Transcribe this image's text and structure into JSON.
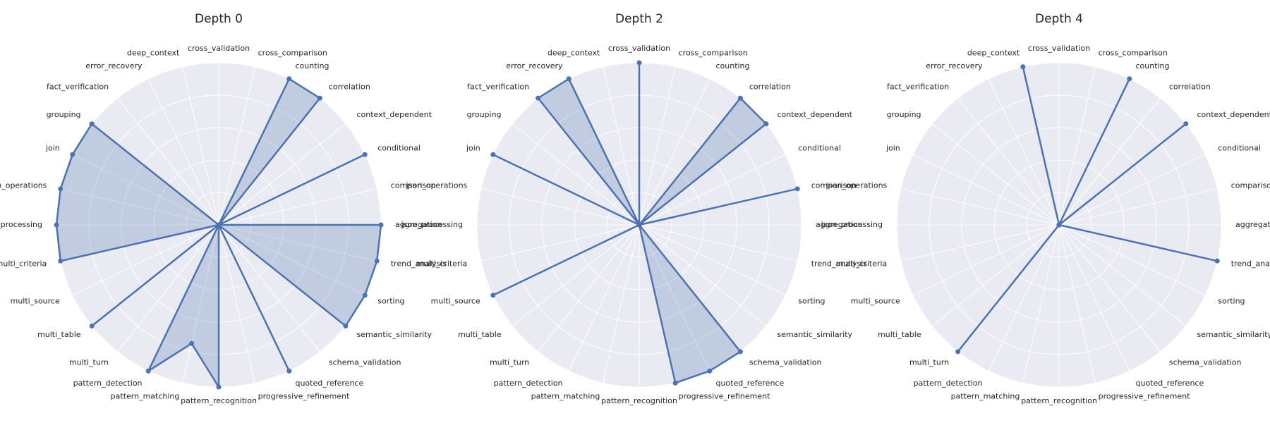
{
  "chart_data": {
    "type": "radar",
    "categories": [
      "aggregation",
      "comparison",
      "conditional",
      "context_dependent",
      "correlation",
      "counting",
      "cross_comparison",
      "cross_validation",
      "deep_context",
      "error_recovery",
      "fact_verification",
      "grouping",
      "join",
      "json_operations",
      "json_processing",
      "multi_criteria",
      "multi_source",
      "multi_table",
      "multi_turn",
      "pattern_detection",
      "pattern_matching",
      "pattern_recognition",
      "progressive_refinement",
      "quoted_reference",
      "schema_validation",
      "semantic_similarity",
      "sorting",
      "trend_analysis"
    ],
    "rlim": [
      0,
      1
    ],
    "grid": true,
    "series_color": "#4c72b0",
    "panels": [
      {
        "title": "Depth 0",
        "values": [
          1,
          0,
          1,
          0,
          1,
          1,
          0,
          0,
          0,
          0,
          0,
          1,
          1,
          1,
          1,
          1,
          0,
          1,
          0,
          1,
          0.75,
          1,
          0,
          1,
          0,
          1,
          1,
          1
        ]
      },
      {
        "title": "Depth 2",
        "values": [
          0,
          1,
          0,
          1,
          1,
          0,
          0,
          1,
          0,
          1,
          1,
          0,
          1,
          0,
          0,
          0,
          1,
          0,
          0,
          0,
          0,
          0,
          1,
          1,
          1,
          0,
          0,
          0
        ]
      },
      {
        "title": "Depth 4",
        "values": [
          0,
          0,
          0,
          1,
          0,
          1,
          0,
          0,
          1,
          0,
          0,
          0,
          0,
          0,
          0,
          0,
          0,
          0,
          1,
          0,
          0,
          0,
          0,
          0,
          0,
          0,
          0,
          1
        ]
      }
    ]
  }
}
